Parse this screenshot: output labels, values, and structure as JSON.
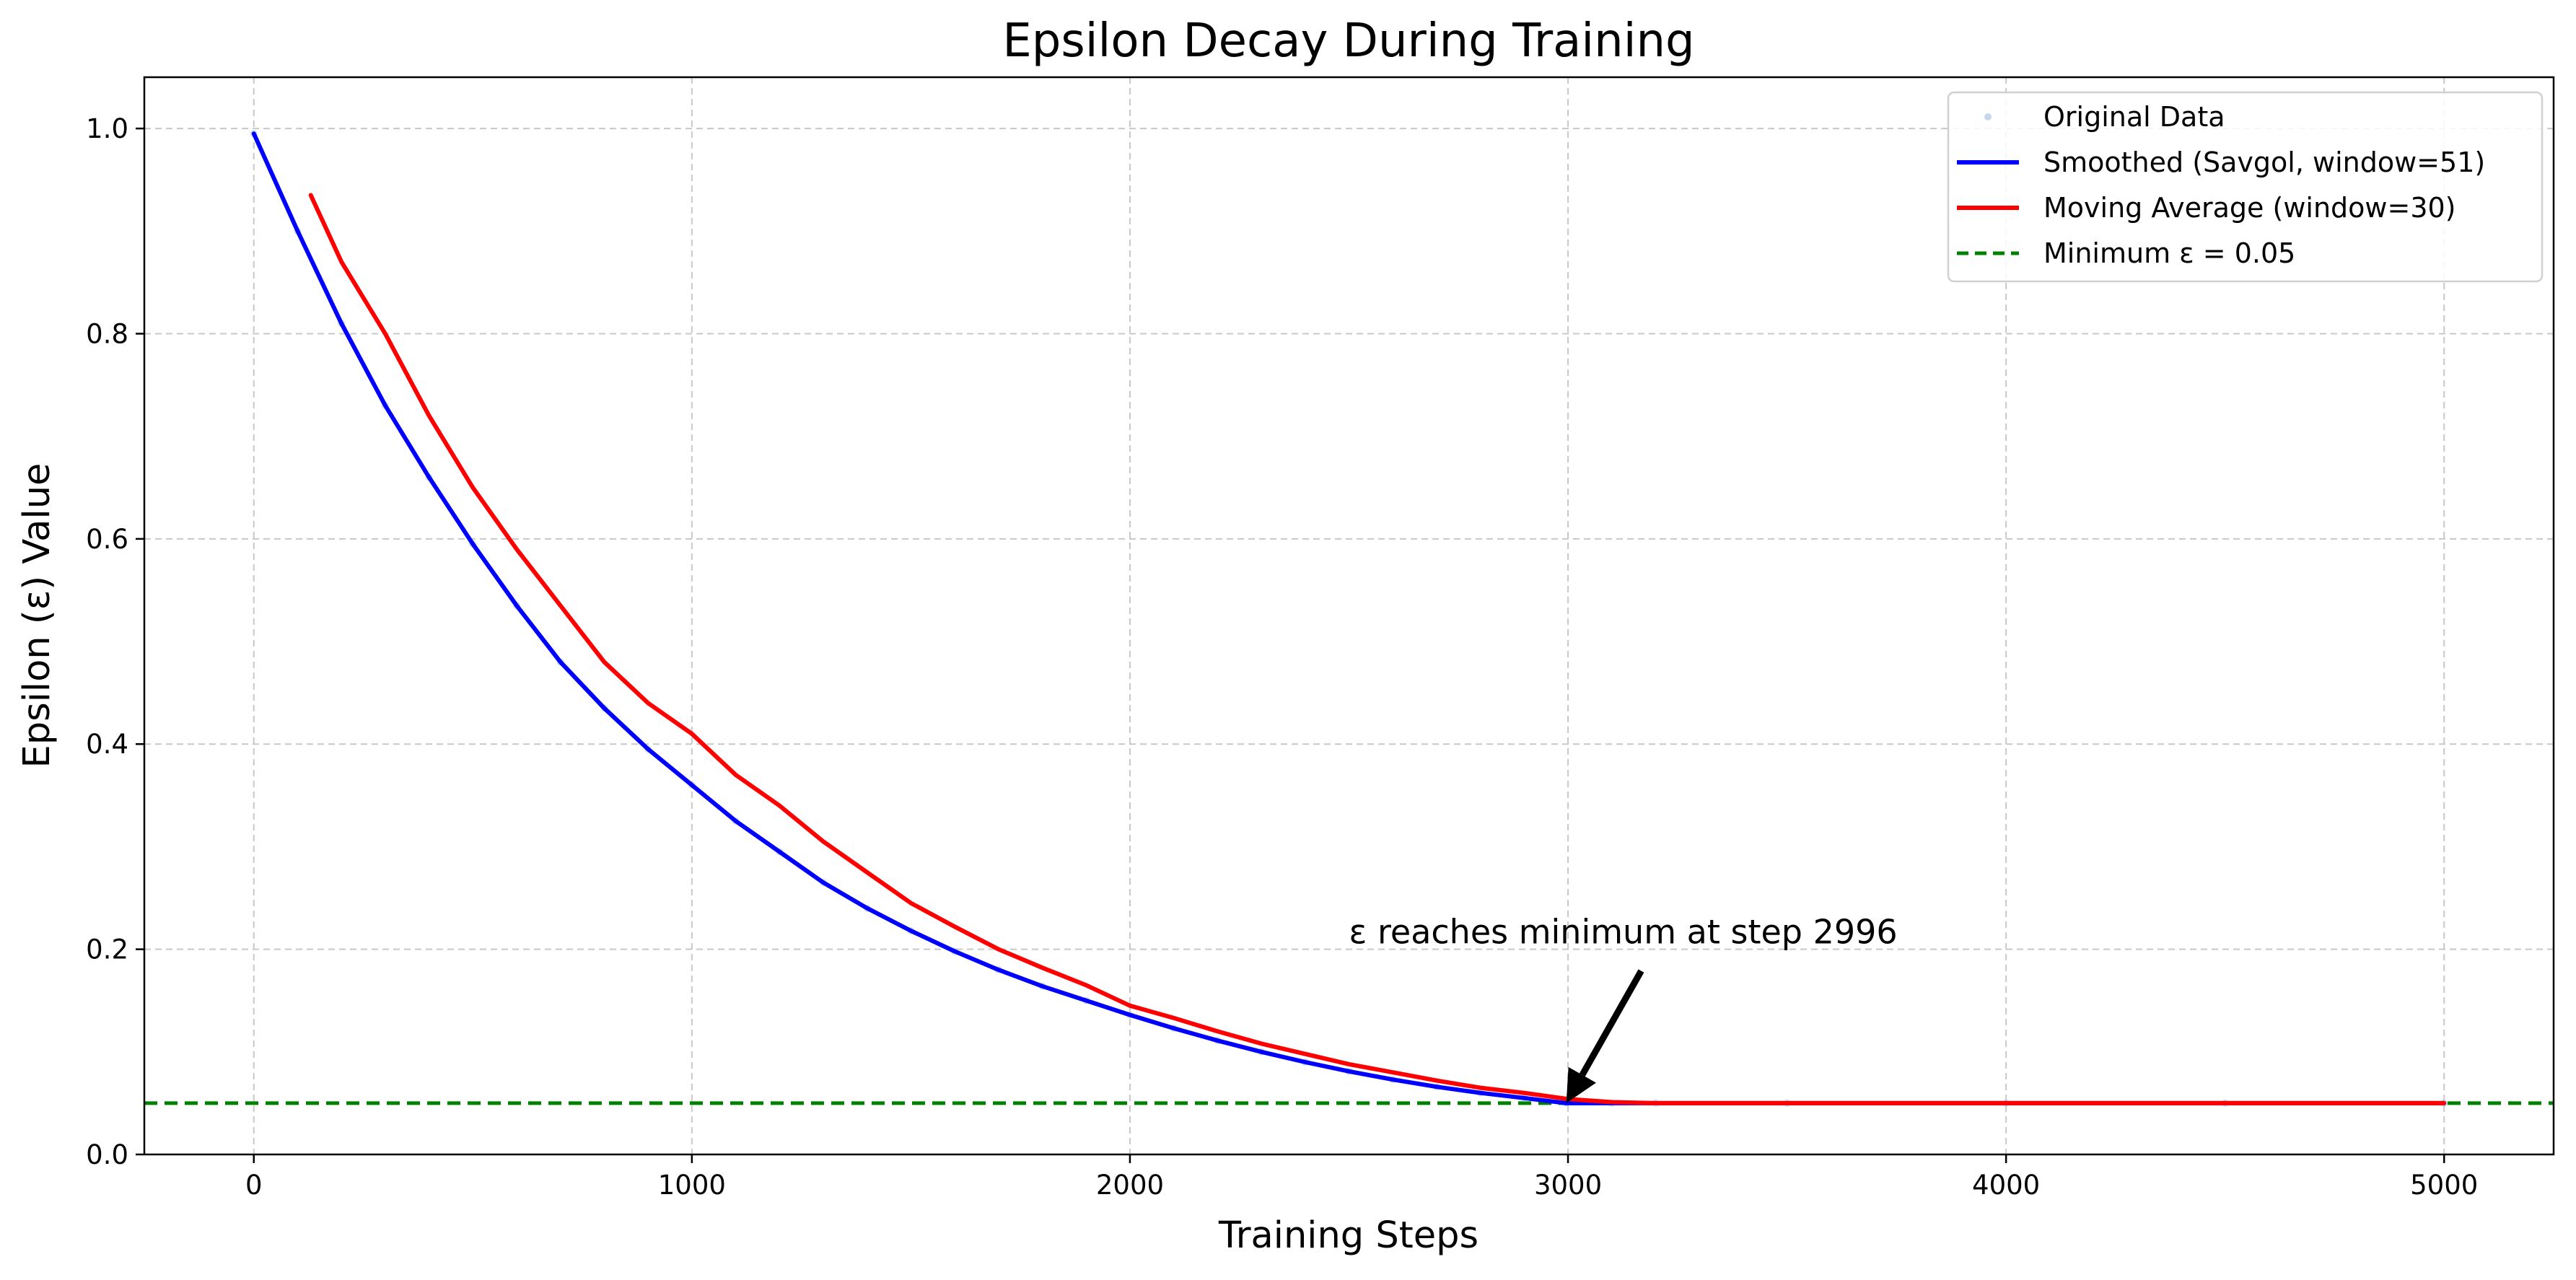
{
  "chart_data": {
    "type": "line",
    "title": "Epsilon Decay During Training",
    "xlabel": "Training Steps",
    "ylabel": "Epsilon (ε) Value",
    "xlim": [
      -250,
      5250
    ],
    "ylim": [
      0.0,
      1.05
    ],
    "xticks": [
      0,
      1000,
      2000,
      3000,
      4000,
      5000
    ],
    "yticks": [
      0.0,
      0.2,
      0.4,
      0.6,
      0.8,
      1.0
    ],
    "xtick_labels": [
      "0",
      "1000",
      "2000",
      "3000",
      "4000",
      "5000"
    ],
    "ytick_labels": [
      "0.0",
      "0.2",
      "0.4",
      "0.6",
      "0.8",
      "1.0"
    ],
    "grid": true,
    "legend_position": "top-right",
    "series": [
      {
        "name": "Original Data",
        "style": "points",
        "color": "#aec7e8",
        "x": [
          0,
          100,
          200,
          300,
          400,
          500,
          600,
          700,
          800,
          900,
          1000,
          1100,
          1200,
          1300,
          1400,
          1500,
          1600,
          1700,
          1800,
          1900,
          2000,
          2100,
          2200,
          2300,
          2400,
          2500,
          2600,
          2700,
          2800,
          2900,
          2996,
          3100,
          3200,
          3500,
          4000,
          4500,
          5000
        ],
        "y": [
          0.995,
          0.9,
          0.81,
          0.73,
          0.66,
          0.595,
          0.535,
          0.48,
          0.435,
          0.395,
          0.36,
          0.325,
          0.295,
          0.265,
          0.24,
          0.218,
          0.198,
          0.18,
          0.164,
          0.15,
          0.136,
          0.123,
          0.111,
          0.1,
          0.09,
          0.081,
          0.073,
          0.066,
          0.06,
          0.055,
          0.05,
          0.05,
          0.05,
          0.05,
          0.05,
          0.05,
          0.05
        ]
      },
      {
        "name": "Smoothed (Savgol, window=51)",
        "style": "line",
        "color": "#0000ff",
        "x": [
          0,
          100,
          200,
          300,
          400,
          500,
          600,
          700,
          800,
          900,
          1000,
          1100,
          1200,
          1300,
          1400,
          1500,
          1600,
          1700,
          1800,
          1900,
          2000,
          2100,
          2200,
          2300,
          2400,
          2500,
          2600,
          2700,
          2800,
          2900,
          2996,
          3100,
          3200,
          3500,
          4000,
          4500,
          5000
        ],
        "y": [
          0.995,
          0.9,
          0.81,
          0.73,
          0.66,
          0.595,
          0.535,
          0.48,
          0.435,
          0.395,
          0.36,
          0.325,
          0.295,
          0.265,
          0.24,
          0.218,
          0.198,
          0.18,
          0.164,
          0.15,
          0.136,
          0.123,
          0.111,
          0.1,
          0.09,
          0.081,
          0.073,
          0.066,
          0.06,
          0.055,
          0.05,
          0.05,
          0.05,
          0.05,
          0.05,
          0.05,
          0.05
        ]
      },
      {
        "name": "Moving Average (window=30)",
        "style": "line",
        "color": "#ff0000",
        "x": [
          130,
          200,
          300,
          400,
          500,
          600,
          700,
          800,
          900,
          1000,
          1100,
          1200,
          1300,
          1400,
          1500,
          1600,
          1700,
          1800,
          1900,
          2000,
          2100,
          2200,
          2300,
          2400,
          2500,
          2600,
          2700,
          2800,
          2900,
          3000,
          3100,
          3200,
          3500,
          4000,
          4500,
          5000
        ],
        "y": [
          0.935,
          0.87,
          0.8,
          0.72,
          0.65,
          0.59,
          0.535,
          0.48,
          0.44,
          0.41,
          0.37,
          0.34,
          0.305,
          0.275,
          0.245,
          0.222,
          0.2,
          0.182,
          0.165,
          0.145,
          0.133,
          0.12,
          0.108,
          0.098,
          0.088,
          0.08,
          0.072,
          0.065,
          0.06,
          0.054,
          0.051,
          0.05,
          0.05,
          0.05,
          0.05,
          0.05
        ]
      }
    ],
    "reference_lines": [
      {
        "name": "Minimum ε = 0.05",
        "y": 0.05,
        "style": "dashed",
        "color": "#008000"
      }
    ],
    "annotations": [
      {
        "text": "ε reaches minimum at step 2996",
        "x": 2996,
        "y": 0.05,
        "text_x": 2500,
        "text_y": 0.2
      }
    ]
  }
}
